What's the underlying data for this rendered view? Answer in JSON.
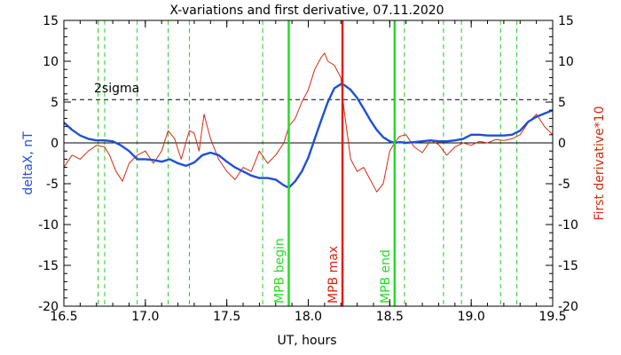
{
  "chart_data": {
    "type": "line",
    "title": "X-variations and first derivative, 07.11.2020",
    "xlabel": "UT, hours",
    "ylabel_left": "deltaX, nT",
    "ylabel_right": "First derivative*10",
    "xlim": [
      16.5,
      19.5
    ],
    "ylim": [
      -20,
      15
    ],
    "xticks": [
      "16.5",
      "17.0",
      "17.5",
      "18.0",
      "18.5",
      "19.0",
      "19.5"
    ],
    "yticks": [
      "15",
      "10",
      "5",
      "0",
      "-5",
      "-10",
      "-15",
      "-20"
    ],
    "colors": {
      "deltaX": "#1f4fd6",
      "derivative": "#d62a10",
      "mpb_begin": "#22dd22",
      "mpb_max": "#e02010",
      "mpb_end": "#22dd22",
      "dashed": "#22cc22",
      "zero": "#000000",
      "threshold": "#000000"
    },
    "threshold": {
      "label": "2sigma",
      "y": 5.3
    },
    "vlines": [
      {
        "label": "MPB begin",
        "x": 17.88,
        "color_key": "mpb_begin"
      },
      {
        "label": "MPB max",
        "x": 18.21,
        "color_key": "mpb_max"
      },
      {
        "label": "MPB end",
        "x": 18.53,
        "color_key": "mpb_end"
      }
    ],
    "dashed_vlines": [
      16.71,
      16.75,
      16.95,
      17.14,
      17.27,
      17.72,
      18.59,
      18.83,
      18.94,
      19.18,
      19.28
    ],
    "series": [
      {
        "key": "deltaX",
        "x": [
          16.5,
          16.55,
          16.6,
          16.65,
          16.7,
          16.75,
          16.8,
          16.85,
          16.9,
          16.95,
          17.0,
          17.05,
          17.1,
          17.15,
          17.2,
          17.25,
          17.3,
          17.35,
          17.4,
          17.45,
          17.5,
          17.55,
          17.6,
          17.65,
          17.7,
          17.75,
          17.8,
          17.85,
          17.88,
          17.92,
          17.96,
          18.0,
          18.04,
          18.08,
          18.12,
          18.16,
          18.2,
          18.22,
          18.26,
          18.3,
          18.34,
          18.38,
          18.42,
          18.46,
          18.5,
          18.53,
          18.56,
          18.6,
          18.65,
          18.7,
          18.75,
          18.8,
          18.85,
          18.9,
          18.95,
          19.0,
          19.05,
          19.1,
          19.15,
          19.2,
          19.25,
          19.3,
          19.35,
          19.4,
          19.45,
          19.5
        ],
        "y": [
          2.5,
          1.6,
          0.9,
          0.5,
          0.3,
          0.3,
          0.2,
          -0.3,
          -1.0,
          -2.0,
          -2.0,
          -2.1,
          -2.3,
          -2.0,
          -2.5,
          -2.8,
          -2.4,
          -1.5,
          -1.2,
          -1.5,
          -2.3,
          -3.0,
          -3.5,
          -4.0,
          -4.3,
          -4.3,
          -4.5,
          -5.2,
          -5.5,
          -4.7,
          -3.5,
          -1.8,
          0.5,
          2.8,
          5.0,
          6.7,
          7.2,
          7.1,
          6.5,
          5.5,
          4.2,
          2.8,
          1.6,
          0.7,
          0.2,
          0.0,
          0.1,
          0.0,
          0.1,
          0.2,
          0.3,
          0.2,
          0.2,
          0.3,
          0.5,
          1.0,
          1.0,
          0.9,
          0.9,
          0.9,
          1.0,
          1.5,
          2.6,
          3.2,
          3.6,
          4.0
        ]
      },
      {
        "key": "derivative",
        "x": [
          16.5,
          16.55,
          16.6,
          16.65,
          16.7,
          16.75,
          16.78,
          16.82,
          16.86,
          16.9,
          16.95,
          17.0,
          17.05,
          17.1,
          17.14,
          17.18,
          17.22,
          17.27,
          17.3,
          17.33,
          17.36,
          17.4,
          17.45,
          17.5,
          17.55,
          17.6,
          17.65,
          17.7,
          17.75,
          17.8,
          17.85,
          17.88,
          17.92,
          17.96,
          18.0,
          18.04,
          18.08,
          18.1,
          18.12,
          18.16,
          18.2,
          18.22,
          18.26,
          18.3,
          18.34,
          18.38,
          18.42,
          18.46,
          18.5,
          18.53,
          18.56,
          18.6,
          18.65,
          18.7,
          18.75,
          18.8,
          18.85,
          18.9,
          18.95,
          19.0,
          19.05,
          19.1,
          19.15,
          19.2,
          19.25,
          19.3,
          19.35,
          19.4,
          19.45,
          19.5
        ],
        "y": [
          -3.0,
          -1.5,
          -2.0,
          -1.0,
          -0.3,
          -0.5,
          -1.5,
          -3.5,
          -4.7,
          -2.5,
          -1.5,
          -1.0,
          -2.5,
          -1.0,
          1.5,
          0.5,
          -2.0,
          1.5,
          1.2,
          -1.0,
          3.5,
          0.5,
          -2.0,
          -3.5,
          -4.5,
          -3.0,
          -3.5,
          -1.0,
          -2.5,
          -1.5,
          0.0,
          2.0,
          3.0,
          5.0,
          6.5,
          9.0,
          10.5,
          11.0,
          10.0,
          9.5,
          8.0,
          4.0,
          -2.0,
          -3.5,
          -3.0,
          -4.5,
          -6.0,
          -5.0,
          -1.0,
          0.0,
          0.8,
          1.0,
          -0.5,
          -1.2,
          0.3,
          -0.2,
          -1.5,
          -0.5,
          0.0,
          -0.3,
          0.2,
          0.0,
          0.4,
          0.3,
          0.5,
          1.0,
          2.5,
          3.5,
          2.0,
          1.0
        ]
      }
    ]
  }
}
